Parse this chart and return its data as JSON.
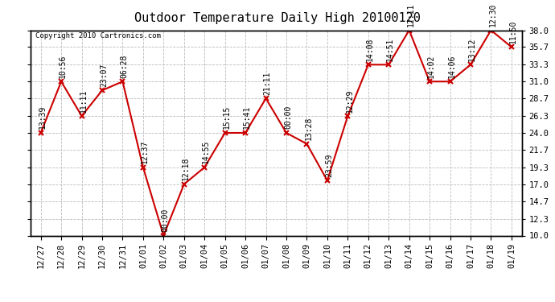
{
  "title": "Outdoor Temperature Daily High 20100120",
  "copyright": "Copyright 2010 Cartronics.com",
  "x_labels": [
    "12/27",
    "12/28",
    "12/29",
    "12/30",
    "12/31",
    "01/01",
    "01/02",
    "01/03",
    "01/04",
    "01/05",
    "01/06",
    "01/07",
    "01/08",
    "01/09",
    "01/10",
    "01/11",
    "01/12",
    "01/13",
    "01/14",
    "01/15",
    "01/16",
    "01/17",
    "01/18",
    "01/19"
  ],
  "y_values": [
    24.0,
    31.0,
    26.3,
    29.8,
    31.0,
    19.3,
    10.0,
    17.0,
    19.3,
    24.0,
    24.0,
    28.7,
    24.0,
    22.5,
    17.5,
    26.3,
    33.3,
    33.3,
    38.0,
    31.0,
    31.0,
    33.3,
    38.0,
    35.7
  ],
  "time_labels": [
    "13:39",
    "10:56",
    "11:11",
    "23:07",
    "06:28",
    "12:37",
    "00:00",
    "12:18",
    "14:55",
    "15:15",
    "15:41",
    "21:11",
    "00:00",
    "13:28",
    "23:59",
    "12:29",
    "14:08",
    "14:51",
    "12:11",
    "14:02",
    "14:06",
    "13:12",
    "12:30",
    "11:50"
  ],
  "ylim": [
    10.0,
    38.0
  ],
  "y_ticks": [
    10.0,
    12.3,
    14.7,
    17.0,
    19.3,
    21.7,
    24.0,
    26.3,
    28.7,
    31.0,
    33.3,
    35.7,
    38.0
  ],
  "line_color": "#cc0000",
  "marker_color": "#cc0000",
  "bg_color": "#ffffff",
  "grid_color": "#bbbbbb",
  "title_fontsize": 11,
  "label_fontsize": 7,
  "tick_fontsize": 7.5,
  "copyright_fontsize": 6.5
}
